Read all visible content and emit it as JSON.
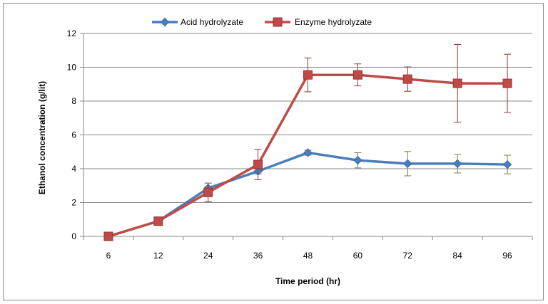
{
  "chart_data": {
    "type": "line",
    "categories": [
      "6",
      "12",
      "24",
      "36",
      "48",
      "60",
      "72",
      "84",
      "96"
    ],
    "xlabel": "Time period (hr)",
    "ylabel": "Ethanol concentration (g/lit)",
    "ylim": [
      0,
      12
    ],
    "yticks": [
      0,
      2,
      4,
      6,
      8,
      10,
      12
    ],
    "grid": true,
    "legend": "top-center",
    "series": [
      {
        "name": "Acid hydrolyzate",
        "color": "#4a7ebb",
        "marker": "diamond",
        "values": [
          0,
          0.9,
          2.85,
          3.85,
          4.95,
          4.5,
          4.3,
          4.3,
          4.25
        ],
        "errors": [
          0,
          0,
          0.1,
          0.15,
          0.15,
          0.45,
          0.72,
          0.55,
          0.55
        ]
      },
      {
        "name": "Enzyme hydrolyzate",
        "color": "#be4b48",
        "marker": "square",
        "values": [
          0,
          0.9,
          2.6,
          4.25,
          9.55,
          9.55,
          9.3,
          9.05,
          9.05
        ],
        "errors": [
          0,
          0,
          0.55,
          0.9,
          1.0,
          0.65,
          0.72,
          2.3,
          1.72
        ]
      }
    ]
  }
}
